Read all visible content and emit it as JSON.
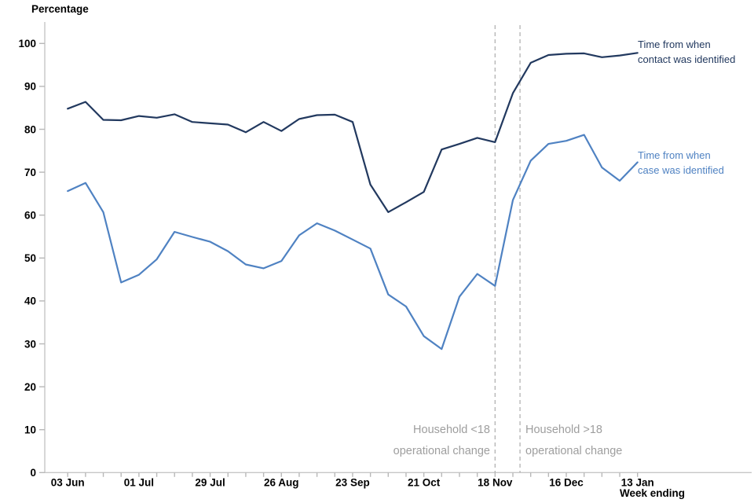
{
  "colors": {
    "contact_series": "#22395f",
    "case_series": "#4f82c2",
    "axis": "#c6c6c6",
    "tick": "#b8b8b8",
    "reference_line": "#b3b3b3",
    "annotation_text": "#9e9e9e",
    "tick_label": "#000000"
  },
  "chart_data": {
    "type": "line",
    "title": "",
    "ylabel": "Percentage",
    "xlabel": "Week ending",
    "ylim": [
      0,
      100
    ],
    "y_ticks": [
      0,
      10,
      20,
      30,
      40,
      50,
      60,
      70,
      80,
      90,
      100
    ],
    "grid": "off",
    "legend_position": "inline-right-of-lines",
    "x_tick_labels": [
      "03 Jun",
      "01 Jul",
      "29 Jul",
      "26 Aug",
      "23 Sep",
      "21 Oct",
      "18 Nov",
      "16 Dec",
      "13 Jan"
    ],
    "categories": [
      "03 Jun",
      "10 Jun",
      "17 Jun",
      "24 Jun",
      "01 Jul",
      "08 Jul",
      "15 Jul",
      "22 Jul",
      "29 Jul",
      "05 Aug",
      "12 Aug",
      "19 Aug",
      "26 Aug",
      "02 Sep",
      "09 Sep",
      "16 Sep",
      "23 Sep",
      "30 Sep",
      "07 Oct",
      "14 Oct",
      "21 Oct",
      "28 Oct",
      "04 Nov",
      "11 Nov",
      "18 Nov",
      "25 Nov",
      "02 Dec",
      "09 Dec",
      "16 Dec",
      "23 Dec",
      "30 Dec",
      "06 Jan",
      "13 Jan"
    ],
    "series": [
      {
        "id": "contact-identified",
        "name": "Time from when contact was identified",
        "label_lines": [
          "Time from when",
          "contact was identified"
        ],
        "color": "#22395f",
        "values": [
          84.8,
          86.4,
          82.2,
          82.1,
          83.1,
          82.7,
          83.5,
          81.7,
          81.4,
          81.1,
          79.3,
          81.7,
          79.6,
          82.4,
          83.3,
          83.4,
          81.7,
          67.1,
          60.7,
          63.0,
          65.4,
          75.3,
          76.6,
          78.0,
          77.0,
          88.4,
          95.5,
          97.3,
          97.6,
          97.7,
          96.8,
          97.2,
          97.8
        ]
      },
      {
        "id": "case-identified",
        "name": "Time from when case was identified",
        "label_lines": [
          "Time from when",
          "case was identified"
        ],
        "color": "#4f82c2",
        "values": [
          65.6,
          67.5,
          60.7,
          44.3,
          46.1,
          49.7,
          56.1,
          54.9,
          53.8,
          51.6,
          48.5,
          47.6,
          49.3,
          55.3,
          58.1,
          56.4,
          54.3,
          52.2,
          41.5,
          38.7,
          31.8,
          28.8,
          41.0,
          46.3,
          43.5,
          63.5,
          72.7,
          76.6,
          77.3,
          78.7,
          71.1,
          68.0,
          72.3
        ]
      }
    ],
    "reference_lines": [
      {
        "x_index": 24,
        "at_label": "18 Nov"
      },
      {
        "x_index": 25.4,
        "at_label": "between 25 Nov and 02 Dec"
      }
    ],
    "annotations": [
      {
        "id": "household-under-18",
        "lines": [
          "Household <18",
          "operational change"
        ],
        "align": "right"
      },
      {
        "id": "household-over-18",
        "lines": [
          "Household >18",
          "operational change"
        ],
        "align": "left"
      }
    ]
  }
}
